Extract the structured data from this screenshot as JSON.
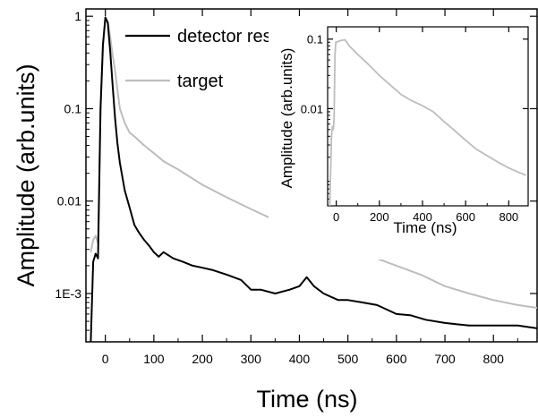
{
  "chart_data": [
    {
      "type": "line",
      "xlabel": "Time (ns)",
      "ylabel": "Amplitude (arb.units)",
      "xlim": [
        -40,
        890
      ],
      "ylim": [
        0.0003,
        1.2
      ],
      "yscale": "log",
      "xticks": [
        0,
        100,
        200,
        300,
        400,
        500,
        600,
        700,
        800
      ],
      "xtick_labels": [
        "0",
        "100",
        "200",
        "300",
        "400",
        "500",
        "600",
        "700",
        "800"
      ],
      "yticks": [
        1,
        0.1,
        0.01,
        0.001
      ],
      "ytick_labels": [
        "1",
        "0.1",
        "0.01",
        "1E-3"
      ],
      "legend_position": "top-left",
      "grid": false,
      "series": [
        {
          "name": "detector response",
          "color": "#000000",
          "x": [
            -30,
            -25,
            -20,
            -15,
            -10,
            -5,
            0,
            5,
            10,
            15,
            20,
            25,
            30,
            40,
            50,
            60,
            70,
            80,
            90,
            100,
            110,
            120,
            140,
            160,
            180,
            200,
            220,
            250,
            280,
            300,
            320,
            350,
            380,
            400,
            415,
            430,
            450,
            480,
            500,
            530,
            560,
            600,
            630,
            660,
            700,
            750,
            800,
            850,
            890
          ],
          "y": [
            0.0003,
            0.0022,
            0.0027,
            0.0024,
            0.1,
            0.5,
            0.97,
            0.85,
            0.42,
            0.18,
            0.08,
            0.042,
            0.026,
            0.013,
            0.0085,
            0.0055,
            0.0045,
            0.0038,
            0.0033,
            0.0028,
            0.0025,
            0.0028,
            0.0024,
            0.0022,
            0.002,
            0.0019,
            0.0018,
            0.0016,
            0.0014,
            0.0011,
            0.0011,
            0.001,
            0.0011,
            0.0012,
            0.0015,
            0.0012,
            0.001,
            0.00085,
            0.00085,
            0.0008,
            0.00075,
            0.0006,
            0.00058,
            0.00052,
            0.00048,
            0.00045,
            0.00045,
            0.00045,
            0.00042
          ]
        },
        {
          "name": "target",
          "color": "#bdbdbd",
          "x": [
            -30,
            -25,
            -20,
            -15,
            -10,
            -5,
            0,
            5,
            10,
            15,
            20,
            25,
            30,
            40,
            50,
            60,
            80,
            100,
            120,
            150,
            200,
            250,
            300,
            350,
            400,
            450,
            500,
            550,
            600,
            650,
            700,
            750,
            800,
            850,
            890
          ],
          "y": [
            0.0028,
            0.0038,
            0.0042,
            0.0035,
            0.1,
            0.45,
            0.96,
            0.88,
            0.6,
            0.38,
            0.26,
            0.16,
            0.1,
            0.07,
            0.055,
            0.05,
            0.04,
            0.033,
            0.027,
            0.022,
            0.015,
            0.011,
            0.0082,
            0.0062,
            0.0052,
            0.0042,
            0.0032,
            0.0025,
            0.002,
            0.0016,
            0.0012,
            0.001,
            0.00085,
            0.00075,
            0.0007
          ]
        }
      ]
    },
    {
      "type": "line",
      "xlabel": "Time (ns)",
      "ylabel": "Amplitude (arb.units)",
      "xlim": [
        -40,
        890
      ],
      "ylim": [
        0.0004,
        0.15
      ],
      "yscale": "log",
      "xticks": [
        0,
        200,
        400,
        600,
        800
      ],
      "xtick_labels": [
        "0",
        "200",
        "400",
        "600",
        "800"
      ],
      "yticks": [
        0.1,
        0.01
      ],
      "ytick_labels": [
        "0.1",
        "0.01"
      ],
      "grid": false,
      "series": [
        {
          "color": "#bdbdbd",
          "x": [
            -30,
            -22,
            -18,
            -14,
            -10,
            -6,
            -2,
            0,
            20,
            40,
            60,
            100,
            150,
            200,
            250,
            300,
            350,
            400,
            450,
            500,
            550,
            600,
            650,
            700,
            750,
            800,
            850,
            880
          ],
          "y": [
            0.0004,
            0.004,
            0.0055,
            0.005,
            0.007,
            0.06,
            0.09,
            0.09,
            0.095,
            0.098,
            0.08,
            0.06,
            0.043,
            0.03,
            0.022,
            0.016,
            0.013,
            0.011,
            0.009,
            0.0065,
            0.0048,
            0.0035,
            0.0026,
            0.0021,
            0.0017,
            0.0014,
            0.0012,
            0.0011
          ]
        }
      ]
    }
  ]
}
